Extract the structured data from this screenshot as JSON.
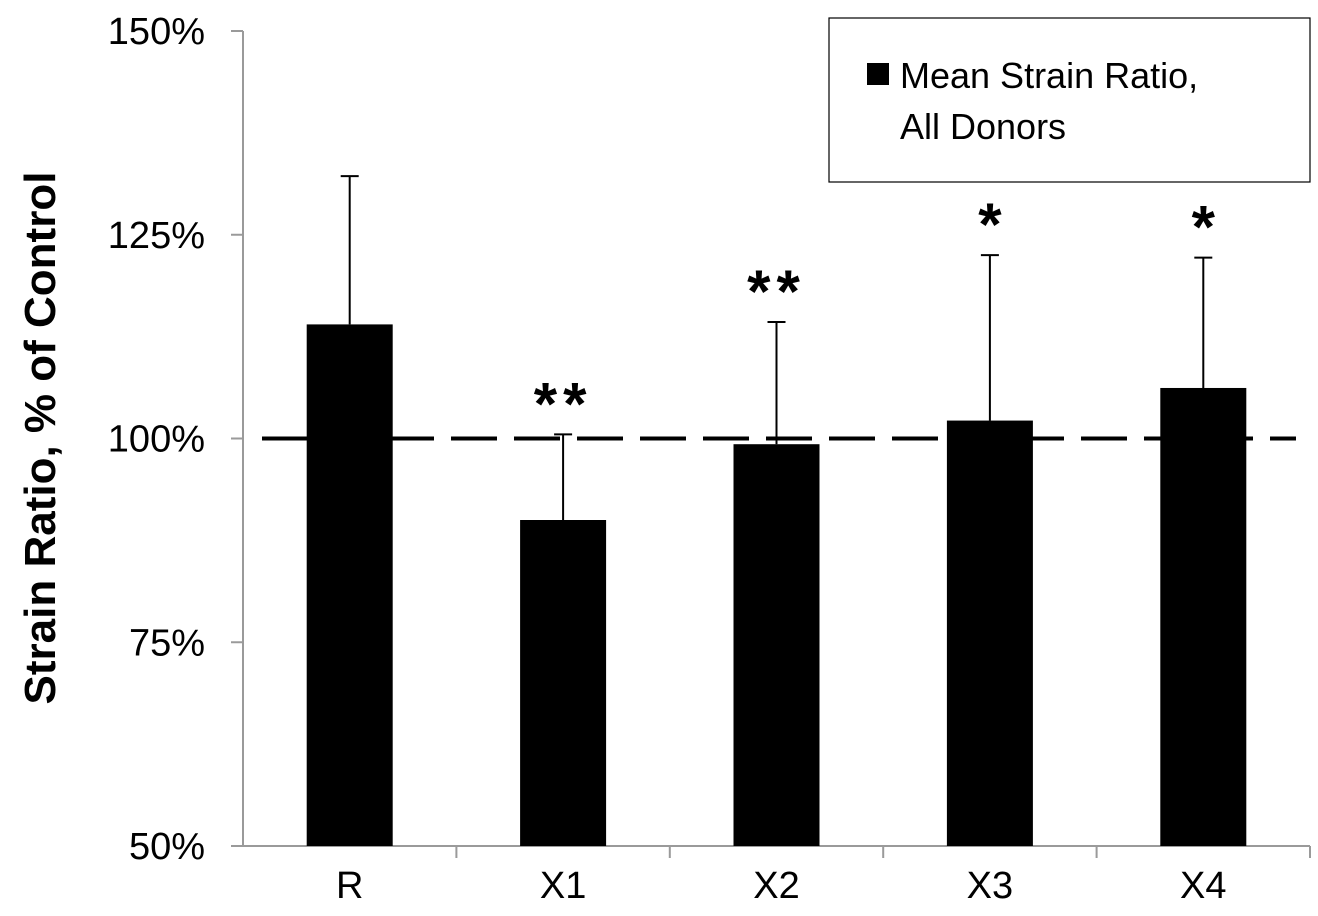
{
  "chart_data": {
    "type": "bar",
    "categories": [
      "R",
      "X1",
      "X2",
      "X3",
      "X4"
    ],
    "series": [
      {
        "name": "Mean Strain Ratio, All Donors",
        "values": [
          114,
          90,
          99.3,
          102.2,
          106.2
        ],
        "error_upper": [
          132.2,
          100.5,
          114.3,
          122.5,
          122.2
        ]
      }
    ],
    "significance": [
      "",
      "**",
      "**",
      "*",
      "*"
    ],
    "reference_line": 100,
    "title": "",
    "xlabel": "",
    "ylabel": "Strain Ratio, % of Control",
    "ylim": [
      50,
      150
    ],
    "yticks": [
      50,
      75,
      100,
      125,
      150
    ],
    "ytick_labels": [
      "50%",
      "75%",
      "100%",
      "125%",
      "150%"
    ],
    "legend": {
      "placement": "top-right",
      "line1": "Mean Strain Ratio,",
      "line2": "All Donors"
    },
    "grid": false,
    "colors": {
      "bar": "#000000",
      "axis": "#9a9a9a",
      "reference_line": "#000000"
    }
  }
}
